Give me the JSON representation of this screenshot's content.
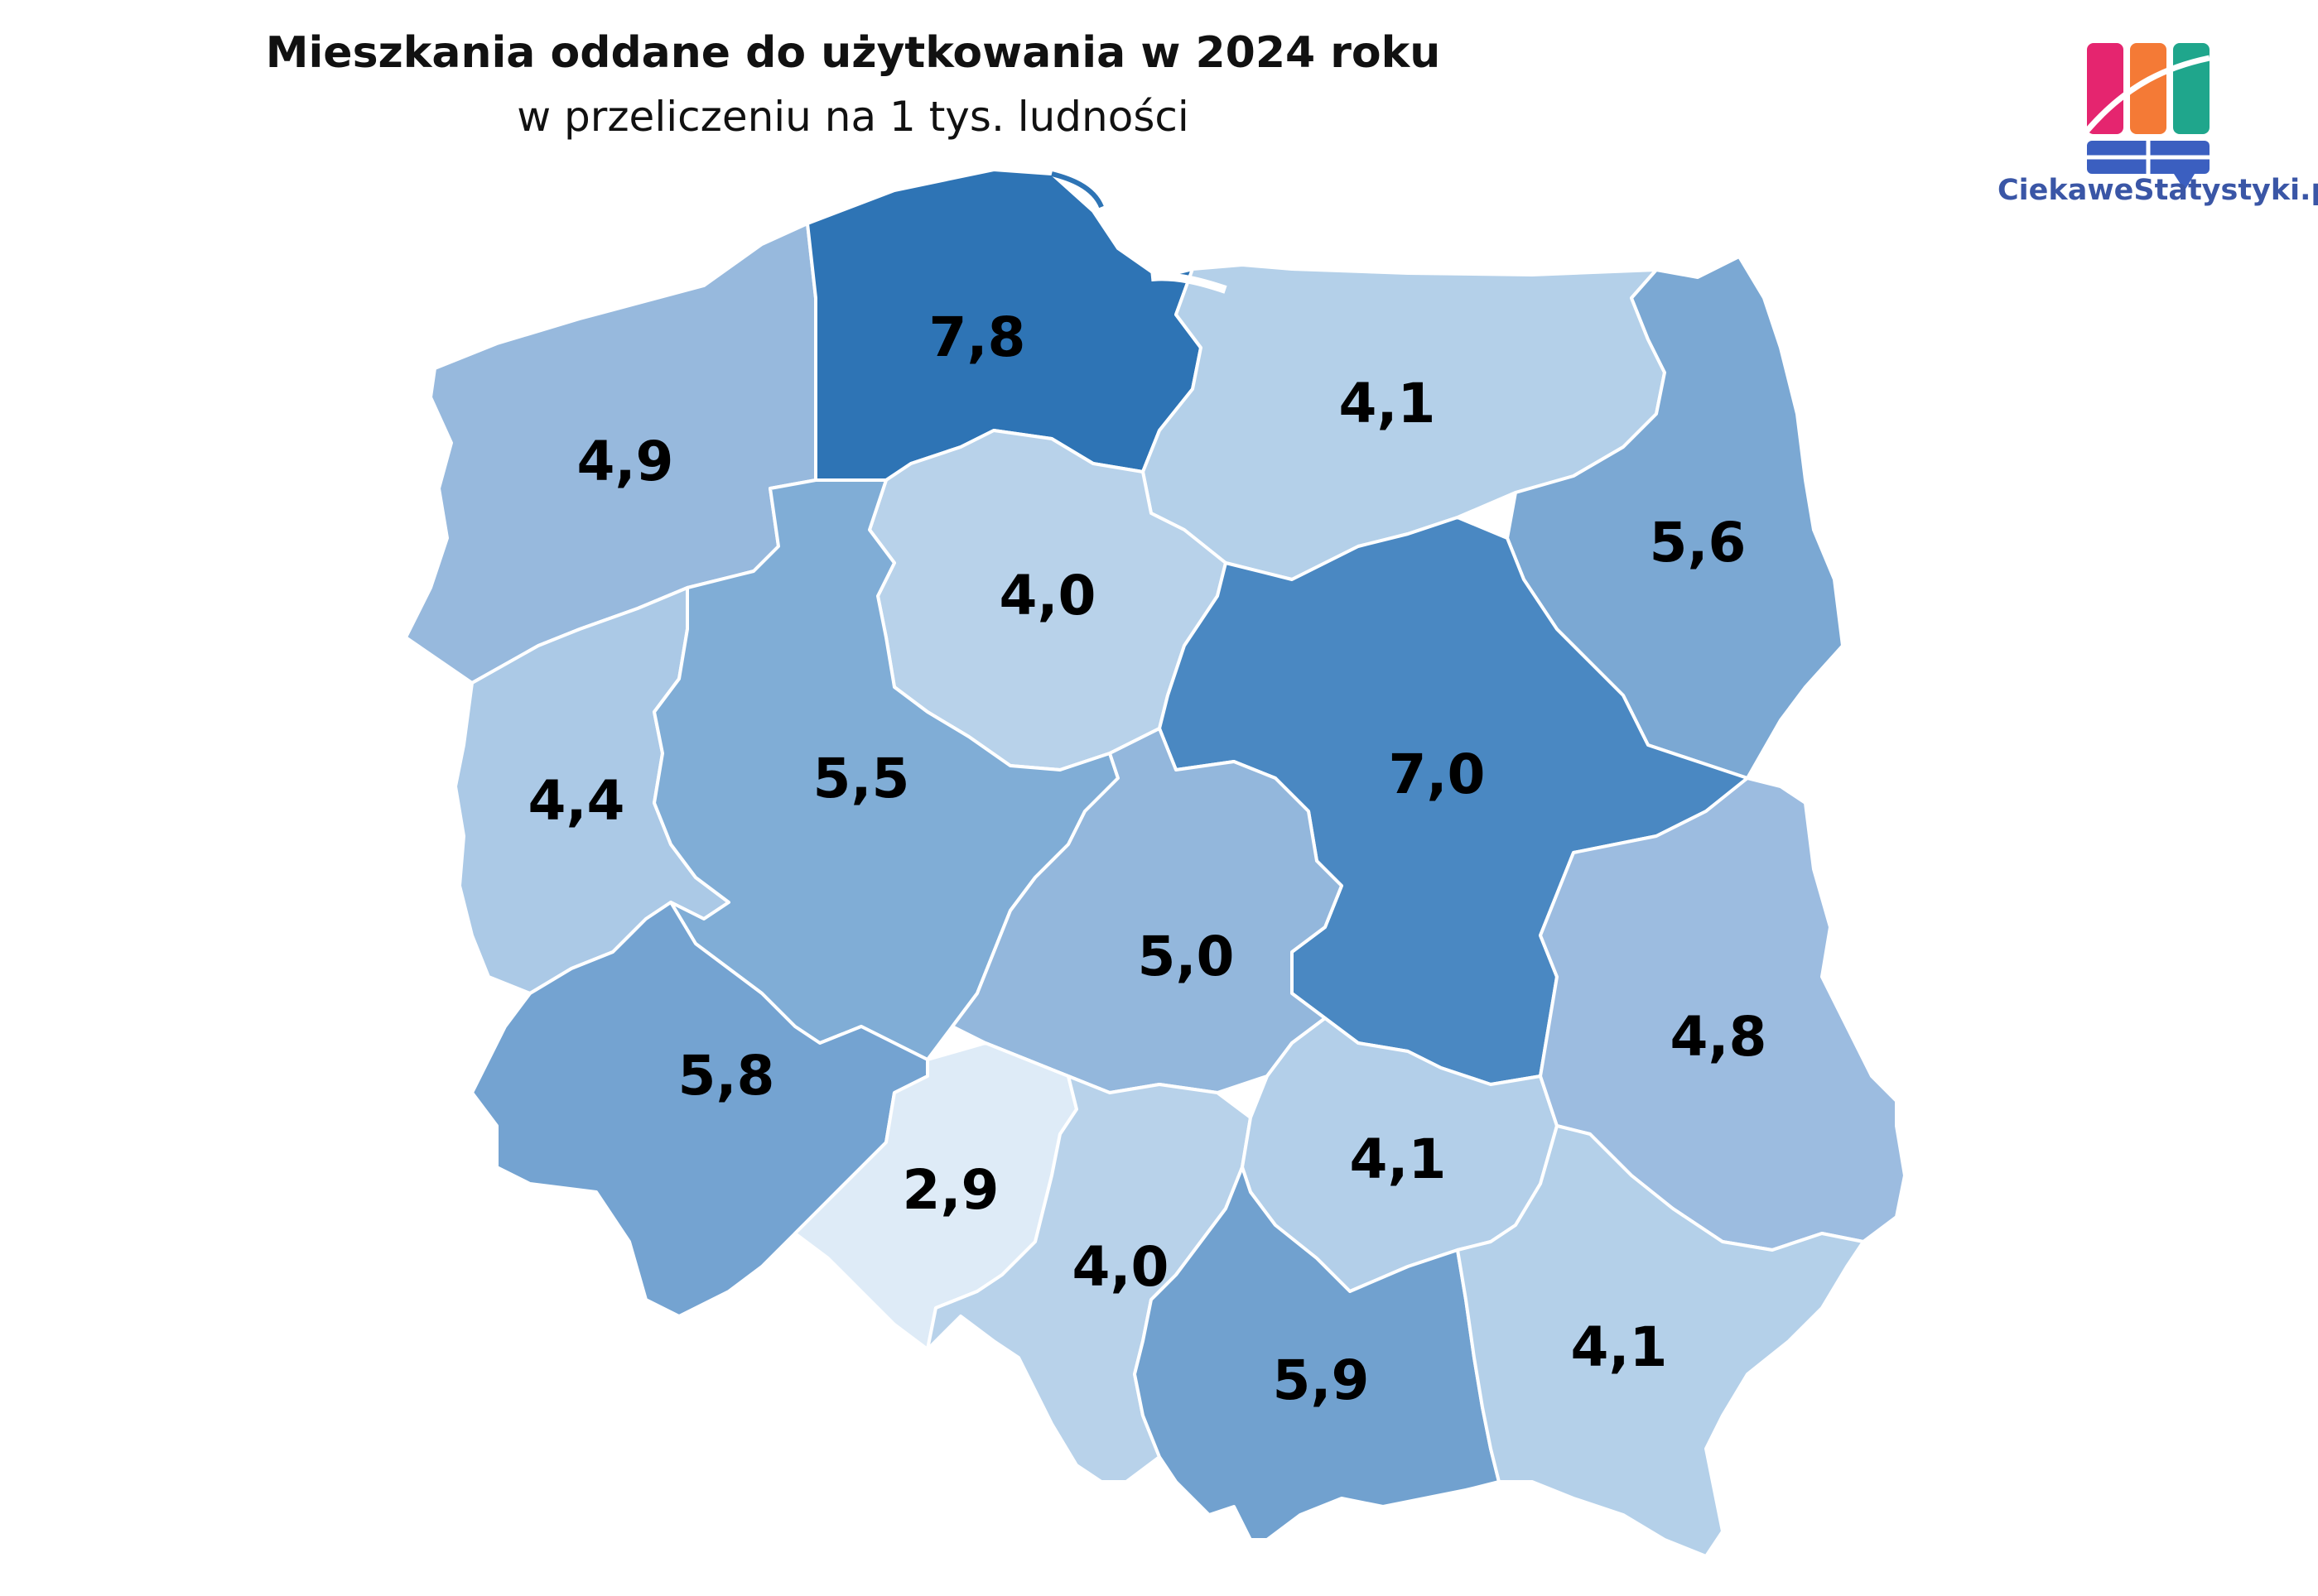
{
  "title": "Mieszkania oddane do użytkowania w 2024 roku",
  "subtitle": "w przeliczeniu  na 1 tys. ludności",
  "logo": {
    "text": "CiekaweStatystyki.pl",
    "colors": [
      "#e5256f",
      "#f47a36",
      "#1fa68c",
      "#3b5fc0"
    ]
  },
  "colors": {
    "border": "#ffffff",
    "sea": "#ffffff",
    "lowest": "#dde9f6",
    "highest": "#2e74b5"
  },
  "regions": [
    {
      "id": "pomorskie",
      "value": "7,8",
      "color": "#2e74b5"
    },
    {
      "id": "warminsko-mazurskie",
      "value": "4,1",
      "color": "#b4d0e9"
    },
    {
      "id": "zachodniopomorskie",
      "value": "4,9",
      "color": "#97b9dd"
    },
    {
      "id": "podlaskie",
      "value": "5,6",
      "color": "#7ba8d3"
    },
    {
      "id": "kujawsko-pomorskie",
      "value": "4,0",
      "color": "#b8d2ea"
    },
    {
      "id": "lubuskie",
      "value": "4,4",
      "color": "#abc9e6"
    },
    {
      "id": "wielkopolskie",
      "value": "5,5",
      "color": "#80add6"
    },
    {
      "id": "mazowieckie",
      "value": "7,0",
      "color": "#4a88c2"
    },
    {
      "id": "lodzkie",
      "value": "5,0",
      "color": "#93b7dc"
    },
    {
      "id": "dolnoslaskie",
      "value": "5,8",
      "color": "#74a3d1"
    },
    {
      "id": "lubelskie",
      "value": "4,8",
      "color": "#9cbce0"
    },
    {
      "id": "opolskie",
      "value": "2,9",
      "color": "#deebf7"
    },
    {
      "id": "swietokrzyskie",
      "value": "4,1",
      "color": "#b3cfe9"
    },
    {
      "id": "slaskie",
      "value": "4,0",
      "color": "#b8d2ea"
    },
    {
      "id": "malopolskie",
      "value": "5,9",
      "color": "#71a1cf"
    },
    {
      "id": "podkarpackie",
      "value": "4,1",
      "color": "#b4d0e9"
    }
  ]
}
